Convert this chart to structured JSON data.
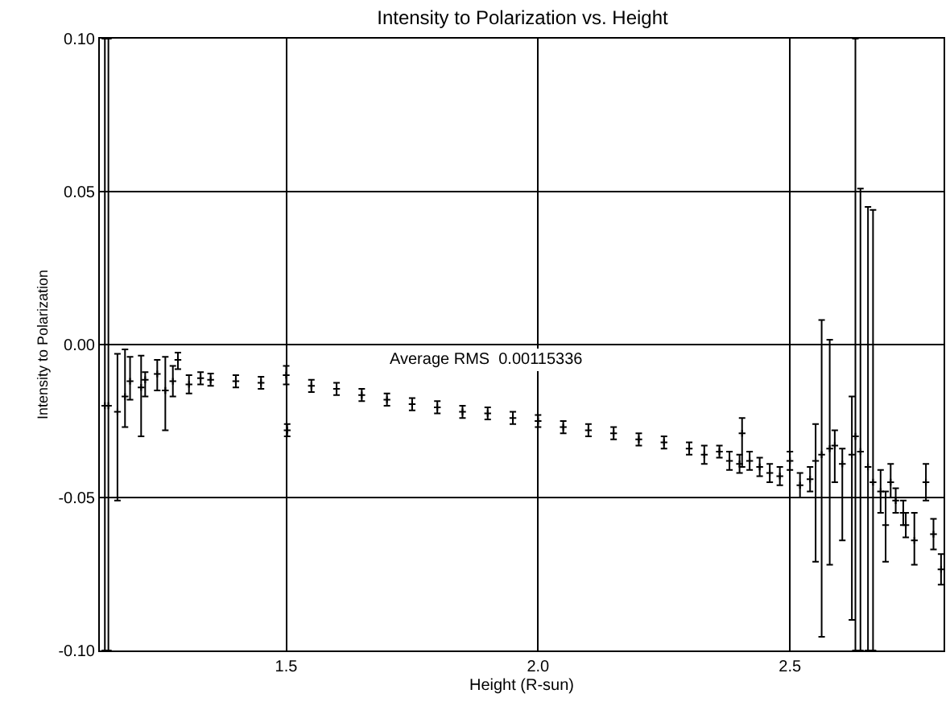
{
  "chart_data": {
    "type": "scatter",
    "title": "Intensity to Polarization vs. Height",
    "xlabel": "Height (R-sun)",
    "ylabel": "Intensity to Polarization",
    "annotations": [
      "Average RMS  0.00115336"
    ],
    "xlim": [
      1.13,
      2.805
    ],
    "ylim": [
      -0.1,
      0.1
    ],
    "xticks": [
      {
        "value": 1.5,
        "label": "1.5"
      },
      {
        "value": 2.0,
        "label": "2.0"
      },
      {
        "value": 2.5,
        "label": "2.5"
      }
    ],
    "yticks": [
      {
        "value": -0.1,
        "label": "-0.10"
      },
      {
        "value": -0.05,
        "label": "-0.05"
      },
      {
        "value": 0,
        "label": "0.00"
      },
      {
        "value": 0.05,
        "label": "0.05"
      },
      {
        "value": 0.1,
        "label": "0.10"
      }
    ],
    "grid": true,
    "marker": "cross",
    "series": [
      {
        "color": "#000000",
        "x": [
          1.14,
          1.147,
          1.165,
          1.18,
          1.19,
          1.212,
          1.22,
          1.244,
          1.26,
          1.275,
          1.285,
          1.307,
          1.33,
          1.35,
          1.4,
          1.45,
          1.5,
          1.502,
          1.55,
          1.6,
          1.65,
          1.7,
          1.75,
          1.8,
          1.85,
          1.9,
          1.95,
          2.0,
          2.05,
          2.1,
          2.15,
          2.2,
          2.25,
          2.3,
          2.33,
          2.36,
          2.38,
          2.4,
          2.405,
          2.42,
          2.44,
          2.46,
          2.48,
          2.5,
          2.52,
          2.54,
          2.551,
          2.563,
          2.579,
          2.589,
          2.604,
          2.623,
          2.63,
          2.64,
          2.655,
          2.665,
          2.68,
          2.69,
          2.7,
          2.71,
          2.725,
          2.73,
          2.747,
          2.77,
          2.785,
          2.8
        ],
        "values": [
          -0.02,
          -0.02,
          -0.022,
          -0.017,
          -0.012,
          -0.014,
          -0.0115,
          -0.0096,
          -0.015,
          -0.012,
          -0.005,
          -0.013,
          -0.011,
          -0.0115,
          -0.012,
          -0.0125,
          -0.01,
          -0.028,
          -0.0135,
          -0.0145,
          -0.0165,
          -0.018,
          -0.0195,
          -0.0205,
          -0.022,
          -0.0225,
          -0.024,
          -0.025,
          -0.027,
          -0.028,
          -0.029,
          -0.031,
          -0.032,
          -0.034,
          -0.036,
          -0.035,
          -0.038,
          -0.039,
          -0.029,
          -0.038,
          -0.04,
          -0.042,
          -0.043,
          -0.038,
          -0.046,
          -0.044,
          -0.038,
          -0.036,
          -0.034,
          -0.033,
          -0.039,
          -0.036,
          -0.03,
          -0.035,
          -0.04,
          -0.045,
          -0.048,
          -0.059,
          -0.045,
          -0.051,
          -0.055,
          -0.059,
          -0.064,
          -0.045,
          -0.062,
          -0.0735
        ],
        "errors": [
          [
            -0.1,
            0.1
          ],
          [
            -0.1,
            0.1
          ],
          [
            -0.051,
            -0.003
          ],
          [
            -0.027,
            -0.0016
          ],
          [
            -0.018,
            -0.004
          ],
          [
            -0.03,
            -0.0036
          ],
          [
            -0.017,
            -0.009
          ],
          [
            -0.015,
            -0.005
          ],
          [
            -0.028,
            -0.004
          ],
          [
            -0.017,
            -0.007
          ],
          [
            -0.008,
            -0.0026
          ],
          0.003,
          0.002,
          0.002,
          0.002,
          0.002,
          0.003,
          0.002,
          0.002,
          0.002,
          0.002,
          0.002,
          0.002,
          0.002,
          0.002,
          0.002,
          0.002,
          0.002,
          0.002,
          0.002,
          0.002,
          0.002,
          0.002,
          0.002,
          0.003,
          0.002,
          0.003,
          0.003,
          [
            -0.04,
            -0.024
          ],
          0.003,
          0.003,
          0.003,
          0.003,
          0.003,
          0.004,
          0.004,
          [
            -0.071,
            -0.026
          ],
          [
            -0.0955,
            0.008
          ],
          [
            -0.072,
            0.0016
          ],
          [
            -0.045,
            -0.028
          ],
          [
            -0.064,
            -0.034
          ],
          [
            -0.09,
            -0.017
          ],
          [
            -0.1,
            0.1
          ],
          [
            -0.1,
            0.051
          ],
          [
            -0.1,
            0.045
          ],
          [
            -0.1,
            0.044
          ],
          [
            -0.055,
            -0.041
          ],
          [
            -0.071,
            -0.048
          ],
          [
            -0.05,
            -0.039
          ],
          0.004,
          0.004,
          0.004,
          [
            -0.072,
            -0.055
          ],
          [
            -0.051,
            -0.039
          ],
          0.005,
          0.005
        ]
      }
    ]
  }
}
